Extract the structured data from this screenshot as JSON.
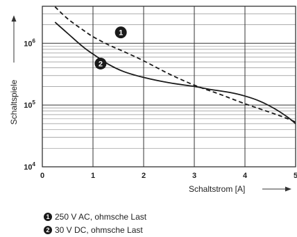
{
  "chart_data": {
    "type": "line",
    "ylabel": "Schaltspiele",
    "xlabel": "Schaltstrom [A]",
    "xlim": [
      0,
      5
    ],
    "ylim_log10": [
      4,
      6.6
    ],
    "y_scale": "log",
    "x_ticks": [
      "0",
      "1",
      "2",
      "3",
      "4",
      "5"
    ],
    "y_ticks": [
      {
        "base": "10",
        "exp": "4"
      },
      {
        "base": "10",
        "exp": "5"
      },
      {
        "base": "10",
        "exp": "6"
      }
    ],
    "grid": true,
    "series": [
      {
        "name": "1",
        "style": "dashed",
        "x": [
          0.25,
          0.5,
          0.8,
          1.0,
          1.3,
          1.6,
          2.0,
          2.5,
          3.0,
          3.5,
          4.0,
          4.5,
          4.8,
          5.0
        ],
        "y": [
          3900000,
          2500000,
          1650000,
          1280000,
          950000,
          740000,
          520000,
          320000,
          210000,
          150000,
          105000,
          76000,
          62000,
          53000
        ]
      },
      {
        "name": "2",
        "style": "solid",
        "x": [
          0.25,
          0.5,
          0.8,
          1.0,
          1.3,
          1.6,
          2.0,
          2.5,
          3.0,
          3.3,
          3.7,
          4.0,
          4.3,
          4.6,
          4.85,
          5.0
        ],
        "y": [
          2200000,
          1450000,
          880000,
          670000,
          460000,
          350000,
          280000,
          230000,
          200000,
          180000,
          160000,
          140000,
          115000,
          86000,
          63000,
          50000
        ]
      }
    ],
    "annotations": [
      {
        "label": "1",
        "x": 1.55,
        "y": 1500000
      },
      {
        "label": "2",
        "x": 1.15,
        "y": 470000
      }
    ]
  },
  "legend": [
    {
      "marker": "1",
      "text": "250 V AC, ohmsche Last"
    },
    {
      "marker": "2",
      "text": "30 V DC, ohmsche Last"
    }
  ]
}
